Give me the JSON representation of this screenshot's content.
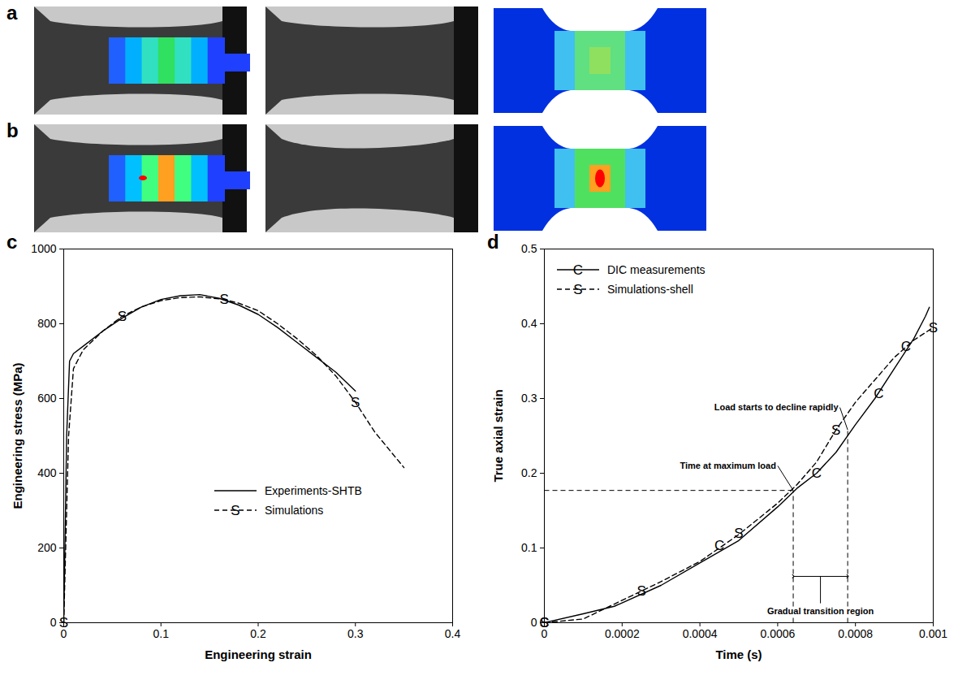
{
  "photo_panels": [
    {
      "label": "a"
    },
    {
      "label": "b"
    }
  ],
  "chart_data": [
    {
      "panel": "c",
      "type": "line",
      "xlabel": "Engineering strain",
      "ylabel": "Engineering stress (MPa)",
      "xlim": [
        0,
        0.4
      ],
      "xticks": [
        0,
        0.1,
        0.2,
        0.3,
        0.4
      ],
      "ylim": [
        0,
        1000
      ],
      "yticks": [
        0,
        200,
        400,
        600,
        800,
        1000
      ],
      "legend": "lower right",
      "series": [
        {
          "name": "Experiments-SHTB",
          "color": "#000000",
          "line_style": "solid",
          "x": [
            0,
            0.003,
            0.006,
            0.01,
            0.02,
            0.04,
            0.06,
            0.08,
            0.1,
            0.12,
            0.14,
            0.16,
            0.18,
            0.2,
            0.22,
            0.24,
            0.26,
            0.28,
            0.3
          ],
          "values": [
            0,
            500,
            700,
            720,
            740,
            780,
            815,
            845,
            865,
            875,
            878,
            868,
            850,
            825,
            790,
            750,
            710,
            670,
            620
          ]
        },
        {
          "name": "Simulations",
          "color": "#000000",
          "line_style": "dashed",
          "marker": "S",
          "x": [
            0,
            0.005,
            0.01,
            0.02,
            0.04,
            0.06,
            0.08,
            0.1,
            0.12,
            0.14,
            0.165,
            0.18,
            0.2,
            0.22,
            0.24,
            0.26,
            0.28,
            0.3,
            0.32,
            0.35
          ],
          "values": [
            0,
            500,
            680,
            730,
            780,
            820,
            845,
            862,
            870,
            872,
            865,
            855,
            835,
            800,
            760,
            715,
            660,
            590,
            510,
            415
          ],
          "marker_x": [
            0,
            0.06,
            0.165,
            0.3
          ],
          "marker_y": [
            0,
            820,
            865,
            590
          ]
        }
      ]
    },
    {
      "panel": "d",
      "type": "line",
      "xlabel": "Time (s)",
      "ylabel": "True axial strain",
      "xlim": [
        0,
        0.001
      ],
      "xticks": [
        0,
        0.0002,
        0.0004,
        0.0006,
        0.0008,
        0.001
      ],
      "ylim": [
        0,
        0.5
      ],
      "yticks": [
        0,
        0.1,
        0.2,
        0.3,
        0.4,
        0.5
      ],
      "legend": "upper left",
      "series": [
        {
          "name": "DIC measurements",
          "color": "#000000",
          "line_style": "solid",
          "marker": "C",
          "x": [
            0,
            0.0001,
            0.00018,
            0.0003,
            0.0004,
            0.0005,
            0.0006,
            0.00065,
            0.0007,
            0.00075,
            0.0008,
            0.00085,
            0.0009,
            0.00095,
            0.00098,
            0.00099
          ],
          "values": [
            0,
            0.012,
            0.022,
            0.05,
            0.08,
            0.11,
            0.155,
            0.18,
            0.2,
            0.228,
            0.265,
            0.3,
            0.34,
            0.38,
            0.41,
            0.422
          ],
          "marker_x": [
            0,
            0.00045,
            0.0007,
            0.00086,
            0.00093
          ],
          "marker_y": [
            0,
            0.103,
            0.2,
            0.307,
            0.37
          ]
        },
        {
          "name": "Simulations-shell",
          "color": "#000000",
          "line_style": "dashed",
          "marker": "S",
          "x": [
            0,
            0.0001,
            0.0002,
            0.0003,
            0.0004,
            0.0005,
            0.0006,
            0.00065,
            0.0007,
            0.00075,
            0.0008,
            0.00085,
            0.0009,
            0.00095,
            0.001
          ],
          "values": [
            0,
            0.005,
            0.03,
            0.055,
            0.082,
            0.118,
            0.16,
            0.185,
            0.215,
            0.258,
            0.295,
            0.325,
            0.355,
            0.378,
            0.395
          ],
          "marker_x": [
            0,
            0.00025,
            0.0005,
            0.00075,
            0.001
          ],
          "marker_y": [
            0,
            0.042,
            0.12,
            0.258,
            0.395
          ]
        }
      ],
      "max_load_time": 0.00064,
      "max_load_strain": 0.177,
      "decline_time": 0.00078,
      "decline_strain": 0.258,
      "transition_arrow_y": 0.062,
      "annotations": [
        {
          "text": "Time at maximum load",
          "x": 0.0006,
          "y": 0.21,
          "target_x": 0.00064,
          "target_y": 0.177
        },
        {
          "text": "Load starts to decline rapidly",
          "x": 0.00076,
          "y": 0.288,
          "target_x": 0.00078,
          "target_y": 0.258
        },
        {
          "text": "Gradual transition region",
          "x": 0.00071,
          "y": 0.015,
          "target_x": 0.00071,
          "target_y": 0.062
        }
      ]
    }
  ]
}
